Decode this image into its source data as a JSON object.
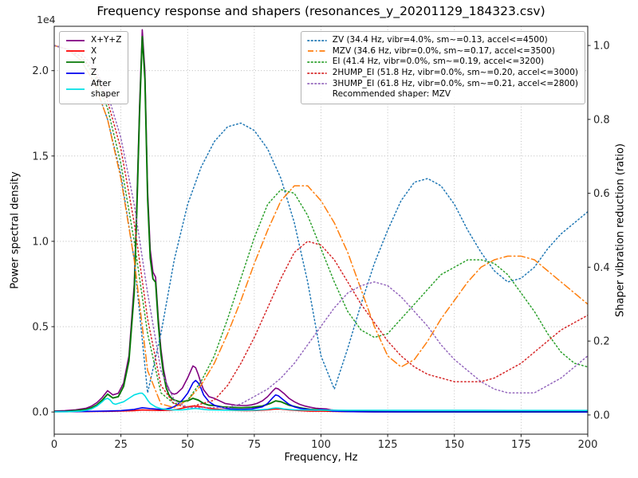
{
  "chart_data": {
    "type": "line",
    "title": "Frequency response and shapers (resonances_y_20201129_184323.csv)",
    "xlabel": "Frequency, Hz",
    "ylabel_left": "Power spectral density",
    "ylabel_right": "Shaper vibration reduction (ratio)",
    "y_left_offset_text": "1e4",
    "xlim": [
      0,
      200
    ],
    "ylim_left": [
      -1300,
      22600
    ],
    "ylim_right": [
      -0.052,
      1.052
    ],
    "x_ticks": {
      "values": [
        0,
        25,
        50,
        75,
        100,
        125,
        150,
        175,
        200
      ],
      "labels": [
        "0",
        "25",
        "50",
        "75",
        "100",
        "125",
        "150",
        "175",
        "200"
      ]
    },
    "y_left_ticks": {
      "values": [
        0,
        5000,
        10000,
        15000,
        20000
      ],
      "labels": [
        "0.0",
        "0.5",
        "1.0",
        "1.5",
        "2.0"
      ]
    },
    "y_right_ticks": {
      "values": [
        0,
        0.2,
        0.4,
        0.6,
        0.8,
        1.0
      ],
      "labels": [
        "0.0",
        "0.2",
        "0.4",
        "0.6",
        "0.8",
        "1.0"
      ]
    },
    "grid": {
      "show": true,
      "style": "dotted",
      "color": "#b0b0b0"
    },
    "recommended_shaper": "MZV",
    "legend_note": "Recommended shaper: MZV",
    "psd_series": [
      {
        "name": "sum",
        "label": "X+Y+Z",
        "color": "#800080",
        "style": "solid",
        "width": 1.6,
        "x": [
          0,
          4,
          8,
          12,
          14,
          16,
          18,
          20,
          22,
          24,
          26,
          28,
          30,
          31,
          32,
          33,
          34,
          35,
          36,
          37,
          38,
          39,
          40,
          41,
          42,
          43,
          44,
          45,
          46,
          48,
          50,
          52,
          53,
          54,
          55,
          56,
          58,
          60,
          62,
          64,
          66,
          68,
          70,
          72,
          74,
          76,
          78,
          80,
          82,
          83,
          84,
          86,
          88,
          90,
          92,
          94,
          96,
          98,
          100,
          102,
          104,
          106,
          108,
          110,
          115,
          120,
          130,
          140,
          150,
          160,
          170,
          180,
          190,
          200
        ],
        "y": [
          60,
          80,
          130,
          220,
          350,
          550,
          850,
          1250,
          1000,
          1100,
          1700,
          3300,
          7500,
          12500,
          18000,
          22400,
          20000,
          13000,
          9500,
          8200,
          7900,
          5500,
          3700,
          2500,
          1700,
          1300,
          1100,
          1050,
          1100,
          1400,
          2000,
          2700,
          2600,
          2200,
          1700,
          1300,
          900,
          800,
          650,
          500,
          450,
          400,
          380,
          380,
          420,
          500,
          650,
          900,
          1250,
          1400,
          1350,
          1100,
          800,
          600,
          450,
          350,
          280,
          220,
          200,
          180,
          120,
          90,
          70,
          50,
          35,
          25,
          18,
          15,
          12,
          10,
          10,
          8,
          7,
          6
        ]
      },
      {
        "name": "x",
        "label": "X",
        "color": "#ff0000",
        "style": "solid",
        "width": 1.6,
        "x": [
          0,
          10,
          20,
          25,
          30,
          33,
          36,
          40,
          44,
          46,
          48,
          50,
          52,
          54,
          56,
          58,
          60,
          64,
          68,
          72,
          76,
          80,
          83,
          85,
          88,
          92,
          96,
          100,
          104,
          110,
          120,
          140,
          160,
          180,
          200
        ],
        "y": [
          15,
          20,
          40,
          60,
          80,
          120,
          100,
          90,
          110,
          150,
          220,
          300,
          350,
          330,
          280,
          220,
          180,
          120,
          90,
          80,
          90,
          130,
          180,
          170,
          120,
          80,
          50,
          60,
          40,
          20,
          12,
          8,
          6,
          5,
          4
        ]
      },
      {
        "name": "y",
        "label": "Y",
        "color": "#067806",
        "style": "solid",
        "width": 1.9,
        "x": [
          0,
          4,
          8,
          12,
          14,
          16,
          18,
          20,
          22,
          24,
          26,
          28,
          30,
          31,
          32,
          33,
          34,
          35,
          36,
          37,
          38,
          39,
          40,
          41,
          42,
          43,
          44,
          45,
          47,
          50,
          52,
          54,
          56,
          58,
          60,
          63,
          66,
          70,
          74,
          78,
          81,
          83,
          85,
          88,
          92,
          96,
          100,
          104,
          108,
          112,
          120,
          130,
          140,
          150,
          160,
          170,
          180,
          190,
          200
        ],
        "y": [
          30,
          40,
          80,
          150,
          250,
          420,
          700,
          1050,
          820,
          900,
          1500,
          3000,
          7000,
          12000,
          17500,
          22000,
          19500,
          12500,
          9000,
          7800,
          7600,
          5200,
          3400,
          2200,
          1400,
          1000,
          800,
          700,
          600,
          650,
          800,
          700,
          500,
          400,
          380,
          300,
          280,
          250,
          280,
          350,
          500,
          650,
          600,
          400,
          250,
          150,
          120,
          80,
          50,
          30,
          20,
          15,
          12,
          10,
          10,
          8,
          8,
          6,
          5
        ]
      },
      {
        "name": "z",
        "label": "Z",
        "color": "#0000ee",
        "style": "solid",
        "width": 1.6,
        "x": [
          0,
          10,
          20,
          25,
          30,
          33,
          36,
          40,
          42,
          44,
          46,
          48,
          50,
          52,
          53,
          54,
          55,
          56,
          58,
          60,
          62,
          64,
          66,
          70,
          74,
          78,
          80,
          82,
          83,
          84,
          86,
          88,
          90,
          92,
          95,
          98,
          100,
          102,
          104,
          108,
          112,
          120,
          140,
          160,
          180,
          200
        ],
        "y": [
          20,
          25,
          60,
          80,
          150,
          250,
          200,
          150,
          180,
          250,
          400,
          700,
          1100,
          1700,
          1850,
          1700,
          1400,
          1000,
          600,
          400,
          300,
          220,
          180,
          150,
          180,
          300,
          500,
          850,
          1000,
          950,
          700,
          450,
          300,
          220,
          150,
          100,
          140,
          120,
          60,
          30,
          20,
          12,
          8,
          6,
          5,
          4
        ]
      },
      {
        "name": "after-shaper",
        "label": "After\nshaper",
        "color": "#00e0e6",
        "style": "solid",
        "width": 1.6,
        "x": [
          0,
          5,
          10,
          12,
          14,
          16,
          18,
          19,
          20,
          21,
          22,
          23,
          24,
          26,
          28,
          30,
          32,
          33,
          34,
          35,
          36,
          38,
          40,
          42,
          44,
          46,
          48,
          50,
          52,
          53,
          54,
          56,
          58,
          60,
          64,
          68,
          72,
          76,
          80,
          82,
          83,
          84,
          86,
          88,
          90,
          94,
          98,
          100,
          102,
          106,
          110,
          120,
          140,
          160,
          180,
          200
        ],
        "y": [
          10,
          15,
          60,
          100,
          180,
          350,
          600,
          750,
          800,
          700,
          500,
          450,
          500,
          600,
          800,
          1000,
          1100,
          1100,
          950,
          700,
          500,
          300,
          200,
          150,
          130,
          120,
          130,
          160,
          200,
          210,
          190,
          150,
          130,
          120,
          110,
          100,
          100,
          115,
          160,
          220,
          240,
          230,
          180,
          150,
          130,
          115,
          110,
          115,
          110,
          105,
          100,
          100,
          95,
          95,
          90,
          90
        ]
      }
    ],
    "shaper_x": [
      0,
      5,
      10,
      15,
      20,
      25,
      30,
      35,
      40,
      45,
      50,
      55,
      60,
      65,
      70,
      75,
      80,
      85,
      90,
      95,
      100,
      105,
      110,
      115,
      120,
      125,
      130,
      135,
      140,
      145,
      150,
      155,
      160,
      165,
      170,
      175,
      180,
      185,
      190,
      195,
      200
    ],
    "shaper_series": [
      {
        "name": "ZV",
        "label": "ZV (34.4 Hz, vibr=4.0%, sm~=0.13, accel<=4500)",
        "color": "#1f77b4",
        "style": "dotted",
        "values": [
          1.0,
          0.99,
          0.96,
          0.9,
          0.8,
          0.65,
          0.42,
          0.06,
          0.22,
          0.42,
          0.57,
          0.67,
          0.74,
          0.78,
          0.79,
          0.77,
          0.72,
          0.64,
          0.52,
          0.36,
          0.16,
          0.07,
          0.18,
          0.3,
          0.41,
          0.5,
          0.58,
          0.63,
          0.64,
          0.62,
          0.57,
          0.5,
          0.44,
          0.39,
          0.36,
          0.37,
          0.4,
          0.45,
          0.49,
          0.52,
          0.55
        ]
      },
      {
        "name": "MZV",
        "label": "MZV (34.6 Hz, vibr=0.0%, sm~=0.17, accel<=3500)",
        "color": "#ff7f0e",
        "style": "dashdot",
        "values": [
          1.0,
          0.99,
          0.96,
          0.9,
          0.8,
          0.64,
          0.42,
          0.12,
          0.03,
          0.02,
          0.04,
          0.08,
          0.14,
          0.22,
          0.31,
          0.41,
          0.5,
          0.58,
          0.62,
          0.62,
          0.58,
          0.52,
          0.44,
          0.34,
          0.24,
          0.16,
          0.13,
          0.15,
          0.2,
          0.26,
          0.31,
          0.36,
          0.4,
          0.42,
          0.43,
          0.43,
          0.42,
          0.39,
          0.36,
          0.33,
          0.3
        ]
      },
      {
        "name": "EI",
        "label": "EI (41.4 Hz, vibr=0.0%, sm~=0.19, accel<=3200)",
        "color": "#2ca02c",
        "style": "dotted",
        "values": [
          1.0,
          0.99,
          0.97,
          0.92,
          0.83,
          0.68,
          0.47,
          0.22,
          0.06,
          0.03,
          0.04,
          0.09,
          0.16,
          0.26,
          0.37,
          0.48,
          0.57,
          0.61,
          0.6,
          0.54,
          0.45,
          0.36,
          0.28,
          0.23,
          0.21,
          0.22,
          0.26,
          0.3,
          0.34,
          0.38,
          0.4,
          0.42,
          0.42,
          0.41,
          0.38,
          0.33,
          0.28,
          0.22,
          0.17,
          0.14,
          0.13
        ]
      },
      {
        "name": "2HUMP_EI",
        "label": "2HUMP_EI (51.8 Hz, vibr=0.0%, sm~=0.20, accel<=3000)",
        "color": "#d62728",
        "style": "dotted",
        "values": [
          1.0,
          0.99,
          0.97,
          0.93,
          0.85,
          0.72,
          0.52,
          0.26,
          0.08,
          0.03,
          0.02,
          0.03,
          0.04,
          0.08,
          0.14,
          0.21,
          0.29,
          0.37,
          0.44,
          0.47,
          0.46,
          0.42,
          0.36,
          0.3,
          0.25,
          0.2,
          0.16,
          0.13,
          0.11,
          0.1,
          0.09,
          0.09,
          0.09,
          0.1,
          0.12,
          0.14,
          0.17,
          0.2,
          0.23,
          0.25,
          0.27
        ]
      },
      {
        "name": "3HUMP_EI",
        "label": "3HUMP_EI (61.8 Hz, vibr=0.0%, sm~=0.21, accel<=2800)",
        "color": "#9467bd",
        "style": "dotted",
        "values": [
          1.0,
          0.99,
          0.98,
          0.94,
          0.87,
          0.75,
          0.57,
          0.33,
          0.12,
          0.04,
          0.02,
          0.02,
          0.02,
          0.02,
          0.03,
          0.05,
          0.07,
          0.1,
          0.14,
          0.19,
          0.24,
          0.29,
          0.33,
          0.35,
          0.36,
          0.35,
          0.32,
          0.28,
          0.24,
          0.19,
          0.15,
          0.12,
          0.09,
          0.07,
          0.06,
          0.06,
          0.06,
          0.08,
          0.1,
          0.13,
          0.16
        ]
      }
    ]
  }
}
